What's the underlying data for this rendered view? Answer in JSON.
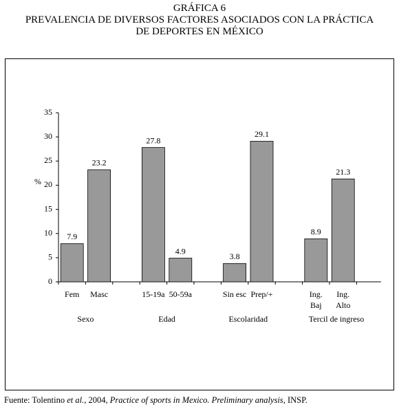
{
  "title_lines": [
    "GRÁFICA 6",
    "PREVALENCIA DE DIVERSOS FACTORES ASOCIADOS CON LA PRÁCTICA",
    "DE DEPORTES EN MÉXICO"
  ],
  "chart_data": {
    "type": "bar",
    "ylabel": "%",
    "ylim": [
      0,
      35
    ],
    "yticks": [
      0,
      5,
      10,
      15,
      20,
      25,
      30,
      35
    ],
    "color": "#999999",
    "groups": [
      {
        "label": "Sexo",
        "categories": [
          "Fem",
          "Masc"
        ],
        "values": [
          7.9,
          23.2
        ]
      },
      {
        "label": "Edad",
        "categories": [
          "15-19a",
          "50-59a"
        ],
        "values": [
          27.8,
          4.9
        ]
      },
      {
        "label": "Escolaridad",
        "categories": [
          "Sin esc",
          "Prep/+"
        ],
        "values": [
          3.8,
          29.1
        ]
      },
      {
        "label": "Tercil de ingreso",
        "categories": [
          "Ing. Baj",
          "Ing. Alto"
        ],
        "values": [
          8.9,
          21.3
        ]
      }
    ]
  },
  "source": [
    "Fuente: Tolentino ",
    "et al.",
    ", 2004, ",
    "Practice of sports in Mexico. Preliminary analysis",
    ", INSP."
  ]
}
